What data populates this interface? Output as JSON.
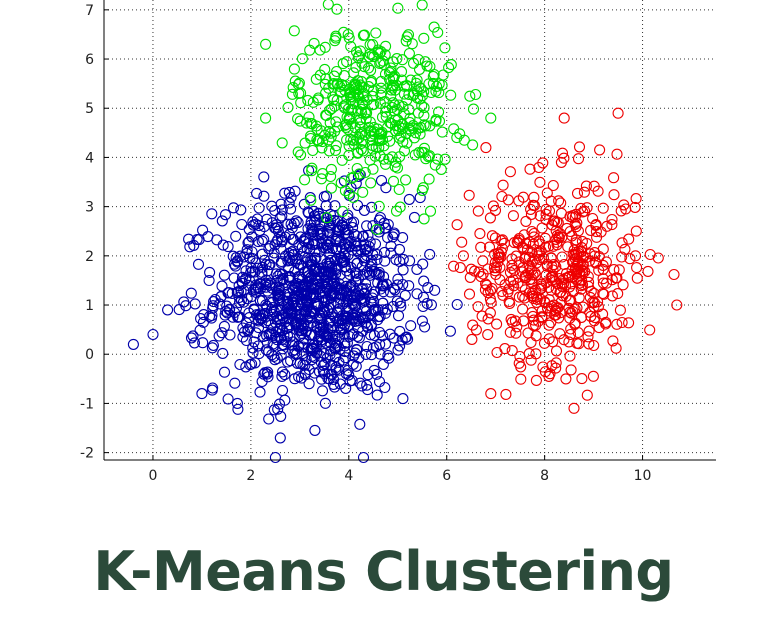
{
  "title": "K-Means Clustering",
  "chart_data": {
    "type": "scatter",
    "title": "",
    "xlabel": "",
    "ylabel": "",
    "xlim": [
      -1,
      11.5
    ],
    "ylim": [
      -2.15,
      7.2
    ],
    "xticks": [
      0,
      2,
      4,
      6,
      8,
      10
    ],
    "yticks": [
      -2,
      -1,
      0,
      1,
      2,
      3,
      4,
      5,
      6,
      7
    ],
    "grid": true,
    "marker": "open-circle",
    "series": [
      {
        "color": "#0000aa",
        "center": [
          3.3,
          1.2
        ],
        "spread": [
          1.0,
          1.0
        ],
        "count": 1100,
        "points": [
          [
            -0.4,
            0.2
          ],
          [
            0.0,
            0.4
          ],
          [
            0.3,
            0.9
          ],
          [
            4.3,
            -2.1
          ],
          [
            2.5,
            -2.1
          ],
          [
            2.6,
            -1.7
          ],
          [
            1.0,
            -0.8
          ]
        ]
      },
      {
        "color": "#00dd00",
        "center": [
          4.5,
          5.0
        ],
        "spread": [
          0.8,
          0.85
        ],
        "count": 420,
        "points": [
          [
            2.3,
            6.3
          ],
          [
            5.5,
            7.1
          ],
          [
            6.9,
            4.8
          ],
          [
            2.3,
            4.8
          ]
        ]
      },
      {
        "color": "#ee0000",
        "center": [
          8.2,
          1.7
        ],
        "spread": [
          0.85,
          0.95
        ],
        "count": 480,
        "points": [
          [
            10.7,
            1.0
          ],
          [
            9.5,
            4.9
          ],
          [
            8.4,
            4.8
          ],
          [
            8.6,
            -1.1
          ],
          [
            6.8,
            4.2
          ],
          [
            6.9,
            -0.8
          ]
        ]
      }
    ]
  }
}
